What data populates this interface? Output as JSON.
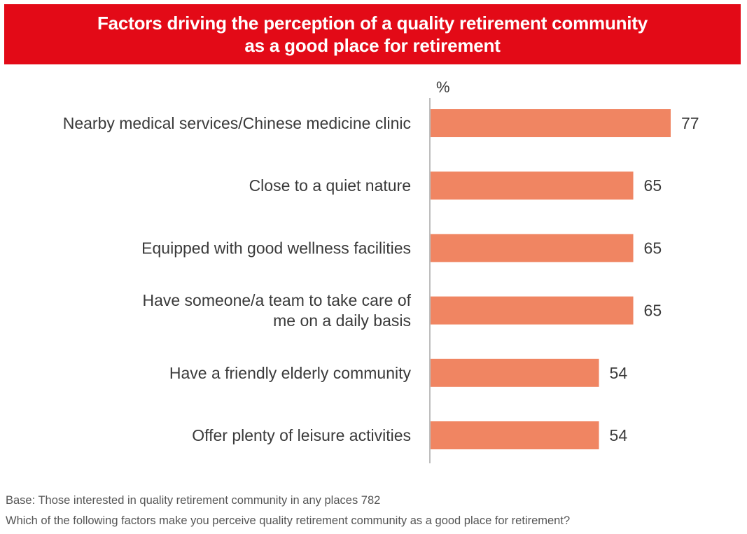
{
  "chart_data": {
    "type": "bar",
    "orientation": "horizontal",
    "title_lines": [
      "Factors driving the perception of a quality retirement community",
      "as a good place for retirement"
    ],
    "unit": "%",
    "categories": [
      [
        "Nearby medical services/Chinese medicine clinic"
      ],
      [
        "Close to a quiet nature"
      ],
      [
        "Equipped with good wellness facilities"
      ],
      [
        "Have someone/a team to take care of",
        "me on a daily basis"
      ],
      [
        "Have a friendly elderly community"
      ],
      [
        "Offer plenty of leisure activities"
      ]
    ],
    "values": [
      77,
      65,
      65,
      65,
      54,
      54
    ],
    "xlim": [
      0,
      100
    ],
    "grid": false,
    "legend": "none",
    "colors": {
      "bar": "#f08562",
      "banner": "#e30a17",
      "axis": "#bdbdbd"
    }
  },
  "footnotes": {
    "base": "Base: Those interested in quality retirement community in any places 782",
    "question": "Which of the following factors make you perceive quality retirement community as a good place for retirement?"
  }
}
